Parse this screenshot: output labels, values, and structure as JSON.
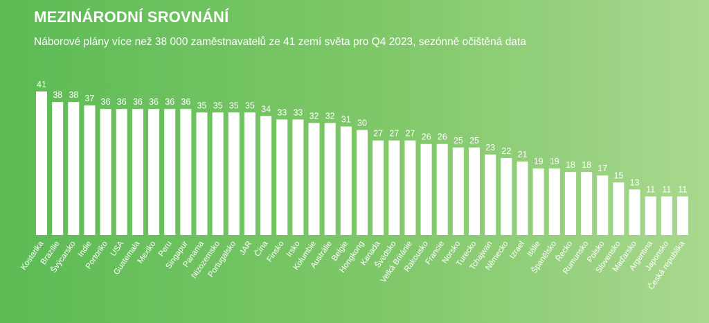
{
  "title": "MEZINÁRODNÍ SROVNÁNÍ",
  "subtitle": "Náborové plány více než 38 000 zaměstnavatelů ze 41 zemí světa pro Q4 2023, sezónně očištěná data",
  "colors": {
    "background_start": "#5cbb55",
    "background_end": "#a9d88f",
    "bar": "#ffffff",
    "text": "#ffffff"
  },
  "chart_data": {
    "type": "bar",
    "title": "MEZINÁRODNÍ SROVNÁNÍ",
    "subtitle": "Náborové plány více než 38 000 zaměstnavatelů ze 41 zemí světa pro Q4 2023, sezónně očištěná data",
    "xlabel": "",
    "ylabel": "",
    "ylim": [
      0,
      41
    ],
    "grid": false,
    "data_labels": true,
    "categories": [
      "Kostarika",
      "Brazílie",
      "Švýcarsko",
      "Indie",
      "Portoriko",
      "USA",
      "Guatemala",
      "Mexiko",
      "Peru",
      "Singapur",
      "Panama",
      "Nizozemsko",
      "Portugalsko",
      "JAR",
      "Čína",
      "Finsko",
      "Irsko",
      "Kolumbie",
      "Austrálie",
      "Belgie",
      "Hongkong",
      "Kanada",
      "Švédsko",
      "Velká Británie",
      "Rakousko",
      "Francie",
      "Norsko",
      "Turecko",
      "Tchajwan",
      "Německo",
      "Izrael",
      "Itálie",
      "Španělsko",
      "Řecko",
      "Rumunsko",
      "Polsko",
      "Slovensko",
      "Maďarsko",
      "Argentina",
      "Japonsko",
      "Česká republika"
    ],
    "values": [
      41,
      38,
      38,
      37,
      36,
      36,
      36,
      36,
      36,
      36,
      35,
      35,
      35,
      35,
      34,
      33,
      33,
      32,
      32,
      31,
      30,
      27,
      27,
      27,
      26,
      26,
      25,
      25,
      23,
      22,
      21,
      19,
      19,
      18,
      18,
      17,
      15,
      13,
      11,
      11,
      11
    ]
  }
}
